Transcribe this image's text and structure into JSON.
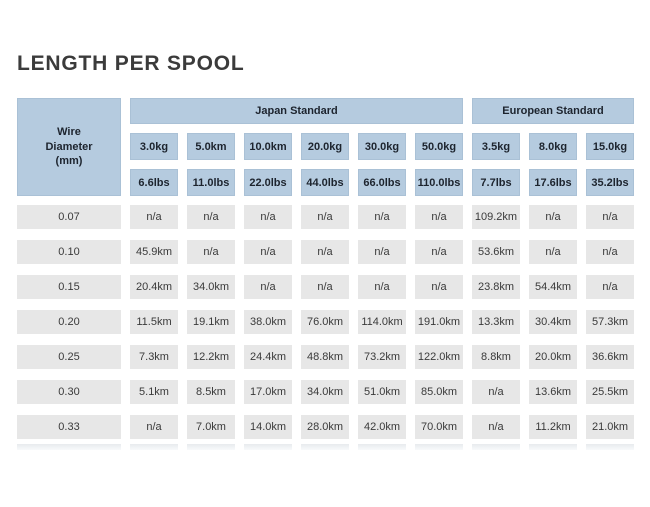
{
  "page": {
    "title": "LENGTH PER SPOOL"
  },
  "chart_data": {
    "type": "table",
    "title": "LENGTH PER SPOOL",
    "row_header": {
      "lines": [
        "Wire",
        "Diameter",
        "(mm)"
      ]
    },
    "groups": [
      {
        "label": "Japan Standard",
        "kg_labels": [
          "3.0kg",
          "5.0km",
          "10.0km",
          "20.0kg",
          "30.0kg",
          "50.0kg"
        ],
        "lbs_labels": [
          "6.6lbs",
          "11.0lbs",
          "22.0lbs",
          "44.0lbs",
          "66.0lbs",
          "110.0lbs"
        ]
      },
      {
        "label": "European Standard",
        "kg_labels": [
          "3.5kg",
          "8.0kg",
          "15.0kg"
        ],
        "lbs_labels": [
          "7.7lbs",
          "17.6lbs",
          "35.2lbs"
        ]
      }
    ],
    "rows": [
      {
        "diameter": "0.07",
        "japan": [
          "n/a",
          "n/a",
          "n/a",
          "n/a",
          "n/a",
          "n/a"
        ],
        "european": [
          "109.2km",
          "n/a",
          "n/a"
        ]
      },
      {
        "diameter": "0.10",
        "japan": [
          "45.9km",
          "n/a",
          "n/a",
          "n/a",
          "n/a",
          "n/a"
        ],
        "european": [
          "53.6km",
          "n/a",
          "n/a"
        ]
      },
      {
        "diameter": "0.15",
        "japan": [
          "20.4km",
          "34.0km",
          "n/a",
          "n/a",
          "n/a",
          "n/a"
        ],
        "european": [
          "23.8km",
          "54.4km",
          "n/a"
        ]
      },
      {
        "diameter": "0.20",
        "japan": [
          "11.5km",
          "19.1km",
          "38.0km",
          "76.0km",
          "114.0km",
          "191.0km"
        ],
        "european": [
          "13.3km",
          "30.4km",
          "57.3km"
        ]
      },
      {
        "diameter": "0.25",
        "japan": [
          "7.3km",
          "12.2km",
          "24.4km",
          "48.8km",
          "73.2km",
          "122.0km"
        ],
        "european": [
          "8.8km",
          "20.0km",
          "36.6km"
        ]
      },
      {
        "diameter": "0.30",
        "japan": [
          "5.1km",
          "8.5km",
          "17.0km",
          "34.0km",
          "51.0km",
          "85.0km"
        ],
        "european": [
          "n/a",
          "13.6km",
          "25.5km"
        ]
      },
      {
        "diameter": "0.33",
        "japan": [
          "n/a",
          "7.0km",
          "14.0km",
          "28.0km",
          "42.0km",
          "70.0km"
        ],
        "european": [
          "n/a",
          "11.2km",
          "21.0km"
        ]
      }
    ],
    "layout_hints": {
      "header_fill": "#b5cbdf",
      "cell_fill": "#e7e7e7",
      "header_text": "#1d242e",
      "cell_text": "#3a3a3a",
      "title_text": "#3b3b3b",
      "background": "#ffffff"
    }
  }
}
